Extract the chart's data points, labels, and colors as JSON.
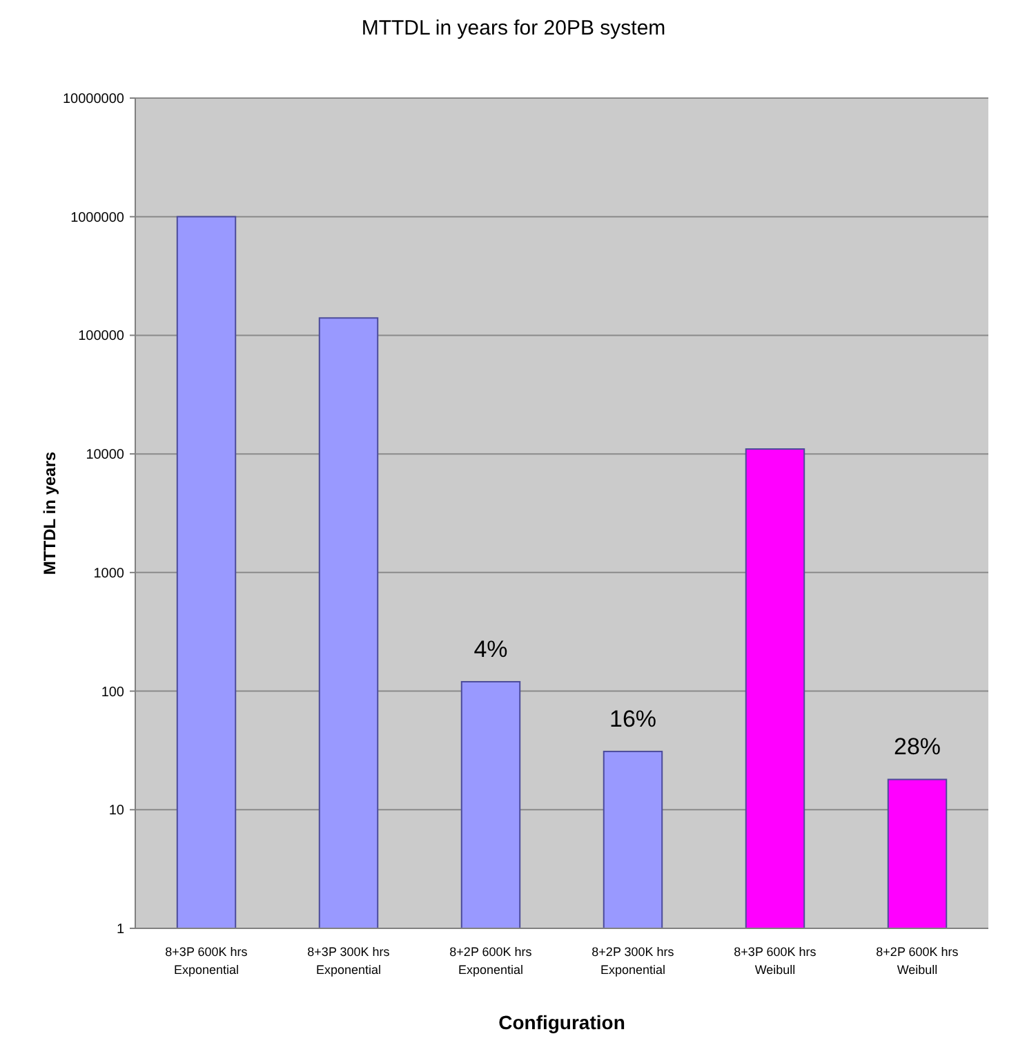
{
  "chart_data": {
    "type": "bar",
    "title": "MTTDL in years for 20PB system",
    "xlabel": "Configuration",
    "ylabel": "MTTDL in years",
    "categories": [
      "8+3P 600K hrs\nExponential",
      "8+3P 300K hrs\nExponential",
      "8+2P 600K hrs\nExponential",
      "8+2P 300K hrs\nExponential",
      "8+3P 600K hrs\nWeibull",
      "8+2P 600K hrs\nWeibull"
    ],
    "values": [
      1000000,
      140000,
      120,
      31,
      11000,
      18
    ],
    "colors": [
      "#9999ff",
      "#9999ff",
      "#9999ff",
      "#9999ff",
      "#ff00ff",
      "#ff00ff"
    ],
    "log": "y",
    "ylim": [
      1,
      10000000
    ],
    "yticks": [
      1,
      10,
      100,
      1000,
      10000,
      100000,
      1000000,
      10000000
    ],
    "grid": "y",
    "annotations": [
      {
        "text": "4%",
        "x": "8+2P 600K hrs\nExponential",
        "y": 120
      },
      {
        "text": "16%",
        "x": "8+2P 300K hrs\nExponential",
        "y": 31
      },
      {
        "text": "28%",
        "x": "8+2P 600K hrs\nWeibull",
        "y": 18
      }
    ]
  }
}
